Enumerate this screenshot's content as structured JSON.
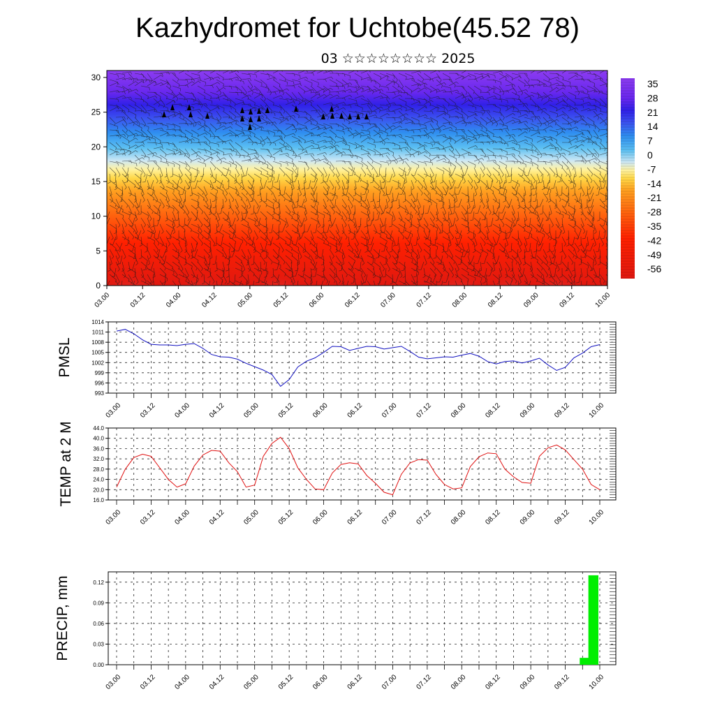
{
  "title": "Kazhydromet for Uchtobe(45.52 78)",
  "subtitle": "03 ☆☆☆☆☆☆☆☆ 2025",
  "time_labels": [
    "03.00",
    "03.12",
    "04.00",
    "04.12",
    "05.00",
    "05.12",
    "06.00",
    "06.12",
    "07.00",
    "07.12",
    "08.00",
    "08.12",
    "09.00",
    "09.12",
    "10.00"
  ],
  "chart_data": [
    {
      "id": "cross-section",
      "type": "heatmap",
      "description_units": "temperature by height with wind barbs",
      "y_ticks": [
        "0",
        "5",
        "10",
        "15",
        "20",
        "25",
        "30"
      ],
      "ylim": [
        0,
        31
      ],
      "colorbar_labels": [
        "35",
        "28",
        "21",
        "14",
        "7",
        "0",
        "-7",
        "-14",
        "-21",
        "-28",
        "-35",
        "-42",
        "-49",
        "-56"
      ],
      "colors": [
        "#f2a0a0",
        "#d81010",
        "#ff3300",
        "#ff9900",
        "#ffe066",
        "#a0d8f0",
        "#30a0f0",
        "#4040f0",
        "#7a30e8"
      ]
    },
    {
      "id": "pmsl",
      "type": "line",
      "ylabel": "PMSL",
      "ylim": [
        993,
        1014
      ],
      "y_ticks": [
        "993",
        "996",
        "999",
        "1002",
        "1005",
        "1008",
        "1011",
        "1014"
      ],
      "color": "#1010c0",
      "x": [
        0,
        3,
        6,
        9,
        12,
        15,
        18,
        21,
        24,
        27,
        30,
        33,
        36,
        39,
        42,
        45,
        48,
        51,
        54,
        57,
        60,
        63,
        66,
        69,
        72,
        75,
        78,
        81,
        84,
        87,
        90,
        93,
        96,
        99,
        102,
        105,
        108,
        111,
        114,
        117,
        120,
        123,
        126,
        129,
        132,
        135,
        138,
        141,
        144,
        147,
        150,
        153,
        156,
        159,
        162,
        165,
        168
      ],
      "values": [
        1011.3,
        1011.8,
        1010.5,
        1008.7,
        1007.4,
        1007.2,
        1007.2,
        1007.0,
        1007.4,
        1007.6,
        1006.2,
        1004.4,
        1003.7,
        1003.6,
        1003.0,
        1001.8,
        1000.8,
        999.8,
        998.5,
        995.0,
        997.0,
        1000.7,
        1002.4,
        1003.4,
        1005.0,
        1006.8,
        1006.7,
        1005.6,
        1006.2,
        1006.8,
        1006.7,
        1006.0,
        1006.4,
        1006.8,
        1005.3,
        1003.6,
        1003.1,
        1003.4,
        1003.7,
        1003.6,
        1004.2,
        1004.7,
        1003.9,
        1002.3,
        1001.6,
        1002.3,
        1002.5,
        1001.9,
        1002.5,
        1003.3,
        1001.3,
        999.7,
        1000.6,
        1003.4,
        1004.8,
        1006.7,
        1007.3
      ]
    },
    {
      "id": "temp2m",
      "type": "line",
      "ylabel": "TEMP at 2 M",
      "ylim": [
        16,
        44
      ],
      "y_ticks": [
        "16.0",
        "20.0",
        "24.0",
        "28.0",
        "32.0",
        "36.0",
        "40.0",
        "44.0"
      ],
      "color": "#e01010",
      "x": [
        0,
        3,
        6,
        9,
        12,
        15,
        18,
        21,
        24,
        27,
        30,
        33,
        36,
        39,
        42,
        45,
        48,
        51,
        54,
        57,
        60,
        63,
        66,
        69,
        72,
        75,
        78,
        81,
        84,
        87,
        90,
        93,
        96,
        99,
        102,
        105,
        108,
        111,
        114,
        117,
        120,
        123,
        126,
        129,
        132,
        135,
        138,
        141,
        144,
        147,
        150,
        153,
        156,
        159,
        162,
        165,
        168
      ],
      "values": [
        21.0,
        28.0,
        32.5,
        33.8,
        33.0,
        28.5,
        24.0,
        21.0,
        22.3,
        29.2,
        33.5,
        35.3,
        35.0,
        30.5,
        27.0,
        21.0,
        21.8,
        33.0,
        38.0,
        40.4,
        36.0,
        28.5,
        24.0,
        20.3,
        20.0,
        26.5,
        29.8,
        30.5,
        30.0,
        25.5,
        22.5,
        19.0,
        18.0,
        26.0,
        30.4,
        31.7,
        31.5,
        26.0,
        22.0,
        20.3,
        20.7,
        29.0,
        32.8,
        34.3,
        34.0,
        28.0,
        25.0,
        22.8,
        22.5,
        33.0,
        36.3,
        37.4,
        35.5,
        31.7,
        28.0,
        22.0,
        20.0
      ]
    },
    {
      "id": "precip",
      "type": "bar",
      "ylabel": "PRECIP, mm",
      "ylim": [
        0,
        0.135
      ],
      "y_ticks": [
        "0.00",
        "0.03",
        "0.06",
        "0.09",
        "0.12"
      ],
      "color": "#00ee00",
      "x": [
        162,
        165
      ],
      "values": [
        0.01,
        0.13
      ]
    }
  ]
}
